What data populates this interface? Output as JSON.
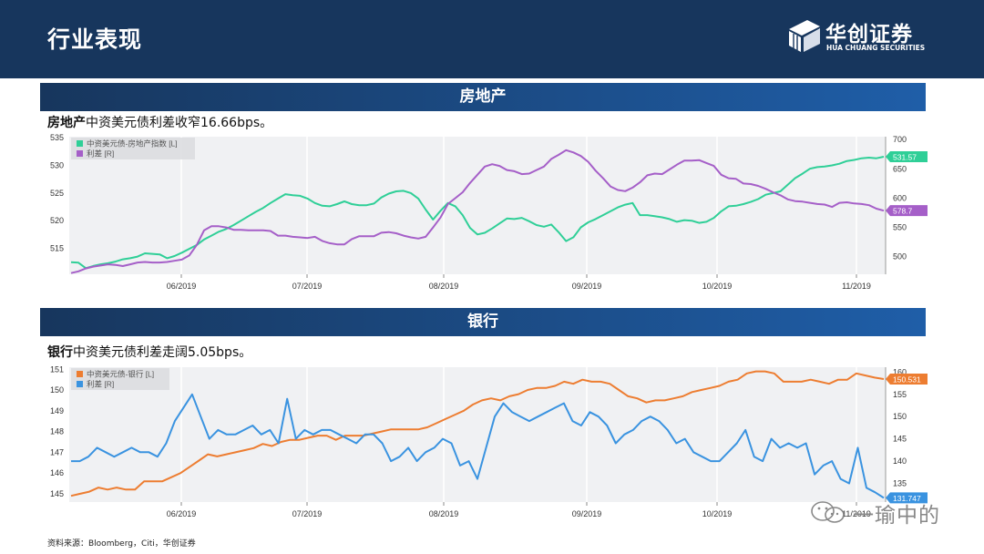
{
  "header": {
    "title": "行业表现"
  },
  "logo": {
    "cn": "华创证券",
    "en": "HUA CHUANG SECURITIES"
  },
  "colors": {
    "green": "#2fcf97",
    "purple": "#a55fc8",
    "orange": "#ed7d31",
    "blue": "#3a93e0",
    "navy": "#17365d"
  },
  "sections": [
    {
      "bar_title": "房地产",
      "caption_bold": "房地产",
      "caption_rest": "中资美元债利差收窄16.66bps。"
    },
    {
      "bar_title": "银行",
      "caption_bold": "银行",
      "caption_rest": "中资美元债利差走阔5.05bps。"
    }
  ],
  "source": "资料来源：Bloomberg，Citi，华创证券",
  "watermark": "一瑜中的",
  "chart_data": [
    {
      "type": "line",
      "title": "房地产",
      "xlabel": "",
      "ylabel": "",
      "months": [
        "06/2019",
        "07/2019",
        "08/2019",
        "09/2019",
        "10/2019",
        "11/2019"
      ],
      "left_axis": {
        "ticks": [
          515,
          520,
          525,
          530,
          535
        ],
        "range": [
          510.3,
          535.2
        ]
      },
      "right_axis": {
        "ticks": [
          500,
          550,
          600,
          650,
          700
        ],
        "range": [
          470,
          705
        ]
      },
      "legend": "top-left",
      "series": [
        {
          "name": "中资美元债-房地产指数 [L]",
          "axis": "left",
          "color": "#2fcf97",
          "last_label": "531.57",
          "values": [
            512.5,
            512.4,
            511.4,
            511.8,
            512.1,
            512.3,
            512.6,
            513.0,
            513.2,
            513.5,
            514.1,
            514.0,
            513.9,
            513.2,
            513.6,
            514.2,
            514.9,
            515.6,
            516.6,
            517.3,
            518.0,
            518.5,
            519.2,
            520.0,
            520.8,
            521.6,
            522.3,
            523.2,
            524.0,
            524.8,
            524.6,
            524.5,
            524.0,
            523.2,
            522.7,
            522.6,
            523.0,
            523.5,
            523.0,
            522.8,
            522.8,
            523.1,
            524.2,
            524.9,
            525.3,
            525.4,
            525.0,
            524.0,
            522.0,
            520.2,
            521.8,
            523.2,
            522.6,
            521.0,
            518.7,
            517.5,
            517.8,
            518.6,
            519.5,
            520.4,
            520.3,
            520.5,
            519.9,
            519.2,
            518.9,
            519.3,
            517.9,
            516.3,
            517.0,
            518.8,
            519.7,
            520.3,
            521.0,
            521.7,
            522.4,
            522.9,
            523.2,
            521.0,
            521.0,
            520.8,
            520.6,
            520.3,
            519.8,
            520.1,
            520.0,
            519.6,
            519.8,
            520.5,
            521.7,
            522.6,
            522.7,
            523.0,
            523.4,
            523.9,
            524.7,
            525.0,
            525.3,
            526.5,
            527.7,
            528.5,
            529.4,
            529.7,
            529.8,
            530.0,
            530.3,
            530.8,
            531.0,
            531.3,
            531.4,
            531.3,
            531.57
          ]
        },
        {
          "name": "利差 [R]",
          "axis": "right",
          "color": "#a55fc8",
          "last_label": "578.7",
          "values": [
            472,
            475,
            480,
            483,
            485,
            487,
            486,
            484,
            487,
            490,
            491,
            490,
            490,
            491,
            493,
            495,
            502,
            520,
            545,
            552,
            552,
            550,
            546,
            546,
            545,
            545,
            545,
            544,
            536,
            536,
            534,
            533,
            532,
            534,
            527,
            523,
            521,
            521,
            530,
            535,
            535,
            535,
            541,
            542,
            540,
            536,
            533,
            531,
            534,
            550,
            567,
            590,
            600,
            610,
            626,
            640,
            654,
            658,
            655,
            648,
            646,
            641,
            642,
            648,
            654,
            667,
            674,
            682,
            678,
            672,
            662,
            647,
            634,
            620,
            614,
            612,
            618,
            627,
            639,
            642,
            641,
            649,
            657,
            664,
            664,
            665,
            660,
            655,
            640,
            634,
            633,
            625,
            624,
            621,
            616,
            610,
            605,
            598,
            595,
            594,
            592,
            590,
            589,
            585,
            592,
            593,
            591,
            590,
            588,
            582,
            578.7
          ]
        }
      ]
    },
    {
      "type": "line",
      "title": "银行",
      "xlabel": "",
      "ylabel": "",
      "months": [
        "06/2019",
        "07/2019",
        "08/2019",
        "09/2019",
        "10/2019",
        "11/2019"
      ],
      "left_axis": {
        "ticks": [
          145,
          146,
          147,
          148,
          149,
          150,
          151
        ],
        "range": [
          144.6,
          151.1
        ]
      },
      "right_axis": {
        "ticks": [
          135,
          140,
          145,
          150,
          155,
          160
        ],
        "range": [
          130.8,
          161.1
        ]
      },
      "legend": "top-left",
      "series": [
        {
          "name": "中资美元债-银行 [L]",
          "axis": "left",
          "color": "#ed7d31",
          "last_label": "150.531",
          "values": [
            144.9,
            145.0,
            145.1,
            145.3,
            145.2,
            145.3,
            145.2,
            145.2,
            145.6,
            145.6,
            145.6,
            145.8,
            146.0,
            146.3,
            146.6,
            146.9,
            146.8,
            146.9,
            147.0,
            147.1,
            147.2,
            147.4,
            147.3,
            147.5,
            147.6,
            147.6,
            147.7,
            147.8,
            147.8,
            147.6,
            147.8,
            147.8,
            147.8,
            147.9,
            148.0,
            148.1,
            148.1,
            148.1,
            148.1,
            148.2,
            148.4,
            148.6,
            148.8,
            149.0,
            149.3,
            149.5,
            149.6,
            149.5,
            149.7,
            149.8,
            150.0,
            150.1,
            150.1,
            150.2,
            150.4,
            150.3,
            150.5,
            150.4,
            150.4,
            150.3,
            150.0,
            149.7,
            149.6,
            149.4,
            149.5,
            149.5,
            149.6,
            149.7,
            149.9,
            150.0,
            150.1,
            150.2,
            150.4,
            150.5,
            150.8,
            150.9,
            150.9,
            150.8,
            150.4,
            150.4,
            150.4,
            150.5,
            150.4,
            150.3,
            150.5,
            150.5,
            150.8,
            150.7,
            150.6,
            150.531
          ]
        },
        {
          "name": "利差 [R]",
          "axis": "right",
          "color": "#3a93e0",
          "last_label": "131.747",
          "values": [
            140,
            140,
            141,
            143,
            142,
            141,
            142,
            143,
            142,
            142,
            141,
            144,
            149,
            152,
            155,
            150,
            145,
            147,
            146,
            146,
            147,
            148,
            146,
            147,
            144,
            154,
            145,
            147,
            146,
            147,
            147,
            146,
            145,
            144,
            146,
            146,
            144,
            140,
            141,
            143,
            140,
            142,
            143,
            145,
            144,
            139,
            140,
            136,
            143,
            150,
            153,
            151,
            150,
            149,
            150,
            151,
            152,
            153,
            149,
            148,
            151,
            150,
            148,
            144,
            146,
            147,
            149,
            150,
            149,
            147,
            144,
            145,
            142,
            141,
            140,
            140,
            142,
            144,
            147,
            141,
            140,
            145,
            143,
            144,
            143,
            144,
            137,
            139,
            140,
            136,
            135,
            143,
            134,
            133,
            131.747
          ]
        }
      ]
    }
  ]
}
